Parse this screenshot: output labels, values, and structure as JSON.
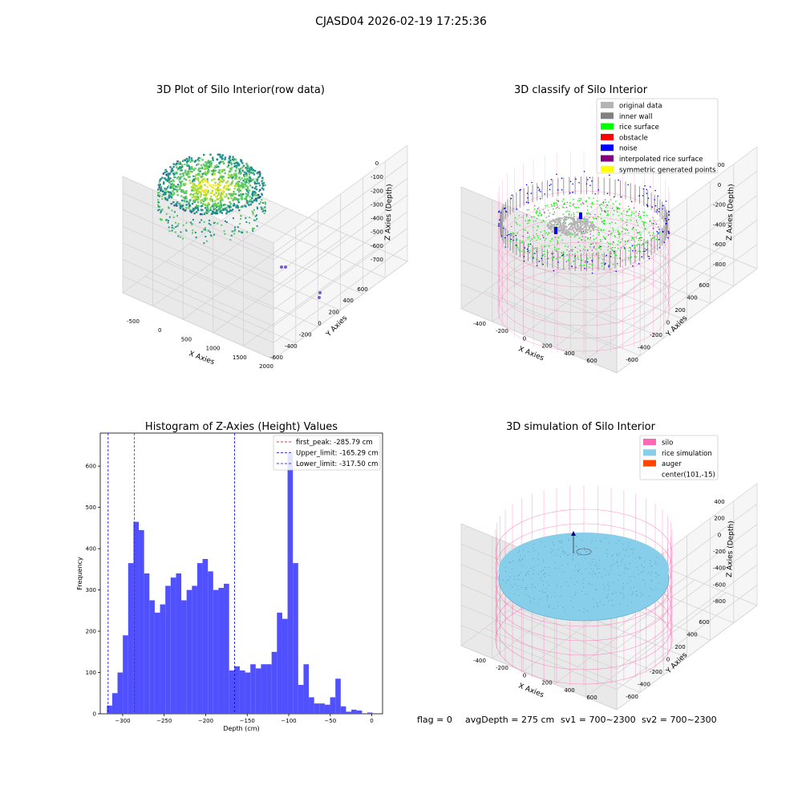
{
  "figure_title": "CJASD04 2026-02-19 17:25:36",
  "footer": {
    "flag": "flag = 0",
    "avg_depth": "avgDepth = 275 cm",
    "sv1": "sv1 = 700~2300",
    "sv2": "sv2 = 700~2300"
  },
  "colors": {
    "histogram_bar": "#5050ff",
    "first_peak_line": "#cc0000",
    "limit_line": "#0000cc",
    "original_data": "#b4b4b4",
    "inner_wall": "#808080",
    "rice_surface": "#00ff00",
    "obstacle": "#ff0000",
    "noise": "#0000ff",
    "interpolated_rice_surface": "#800080",
    "symmetric_generated_points": "#ffff00",
    "silo": "#ff69b4",
    "rice_simulation": "#87ceeb",
    "auger": "#ff4500"
  },
  "chart_data": [
    {
      "type": "scatter",
      "projection": "3d",
      "title": "3D Plot of Silo Interior(row data)",
      "xlabel": "X Axies",
      "ylabel": "Y Axies",
      "zlabel": "Z Axies (Depth)",
      "x_ticks": [
        "-500",
        "0",
        "500",
        "1000",
        "1500",
        "2000"
      ],
      "y_ticks": [
        "-600",
        "-400",
        "-200",
        "0",
        "200",
        "400",
        "600"
      ],
      "z_ticks": [
        "-700",
        "-600",
        "-500",
        "-400",
        "-300",
        "-200",
        "-100",
        "0"
      ],
      "xlim": [
        -650,
        2100
      ],
      "ylim": [
        -650,
        650
      ],
      "zlim": [
        -780,
        30
      ],
      "colormap": "viridis",
      "grid": true
    },
    {
      "type": "scatter",
      "projection": "3d",
      "title": "3D classify of Silo Interior",
      "xlabel": "X Axies",
      "ylabel": "Y Axies",
      "zlabel": "Z Axies (Depth)",
      "x_ticks": [
        "-400",
        "-200",
        "0",
        "200",
        "400",
        "600"
      ],
      "y_ticks": [
        "-600",
        "-400",
        "-200",
        "0",
        "200",
        "400",
        "600"
      ],
      "z_ticks": [
        "-800",
        "-600",
        "-400",
        "-200",
        "0",
        "200"
      ],
      "grid": true,
      "legend_position": "top-right",
      "legend": [
        {
          "label": "original data",
          "color": "#b4b4b4"
        },
        {
          "label": "inner wall",
          "color": "#808080"
        },
        {
          "label": "rice surface",
          "color": "#00ff00"
        },
        {
          "label": "obstacle",
          "color": "#ff0000"
        },
        {
          "label": "noise",
          "color": "#0000ff"
        },
        {
          "label": "interpolated rice surface",
          "color": "#800080"
        },
        {
          "label": "symmetric generated points",
          "color": "#ffff00"
        }
      ]
    },
    {
      "type": "bar",
      "subtype": "histogram",
      "title": "Histogram of Z-Axies (Height) Values",
      "xlabel": "Depth (cm)",
      "ylabel": "Frequency",
      "xlim": [
        -327,
        13
      ],
      "ylim": [
        0,
        680
      ],
      "x_ticks": [
        -300,
        -250,
        -200,
        -150,
        -100,
        -50,
        0
      ],
      "y_ticks": [
        0,
        100,
        200,
        300,
        400,
        500,
        600
      ],
      "bin_start": -319,
      "bin_width": 6.4,
      "values": [
        20,
        50,
        100,
        190,
        365,
        465,
        445,
        340,
        275,
        245,
        265,
        310,
        330,
        340,
        275,
        300,
        310,
        365,
        375,
        345,
        300,
        305,
        315,
        105,
        115,
        105,
        100,
        120,
        110,
        120,
        120,
        150,
        245,
        230,
        630,
        365,
        70,
        120,
        40,
        25,
        25,
        22,
        40,
        85,
        18,
        5,
        10,
        8,
        0,
        3
      ],
      "vlines": [
        {
          "x": -285.79,
          "label": "first_peak: -285.79 cm",
          "color": "#cc0000"
        },
        {
          "x": -165.29,
          "label": "Upper_limit: -165.29 cm",
          "color": "#0000cc"
        },
        {
          "x": -317.5,
          "label": "Lower_limit: -317.50 cm",
          "color": "#0000cc"
        }
      ],
      "legend_position": "top-right"
    },
    {
      "type": "scatter",
      "projection": "3d",
      "title": "3D simulation of Silo Interior",
      "xlabel": "X Axies",
      "ylabel": "Y Axies",
      "zlabel": "Z Axies (Depth)",
      "x_ticks": [
        "-400",
        "-200",
        "0",
        "200",
        "400",
        "600"
      ],
      "y_ticks": [
        "-600",
        "-400",
        "-200",
        "0",
        "200",
        "400",
        "600"
      ],
      "z_ticks": [
        "-800",
        "-600",
        "-400",
        "-200",
        "0",
        "200",
        "400"
      ],
      "grid": true,
      "legend_position": "top-right",
      "legend": [
        {
          "label": "silo",
          "color": "#ff69b4"
        },
        {
          "label": "rice simulation",
          "color": "#87ceeb"
        },
        {
          "label": "auger",
          "color": "#ff4500"
        },
        {
          "label": "center(101,-15)",
          "color": ""
        }
      ]
    }
  ]
}
